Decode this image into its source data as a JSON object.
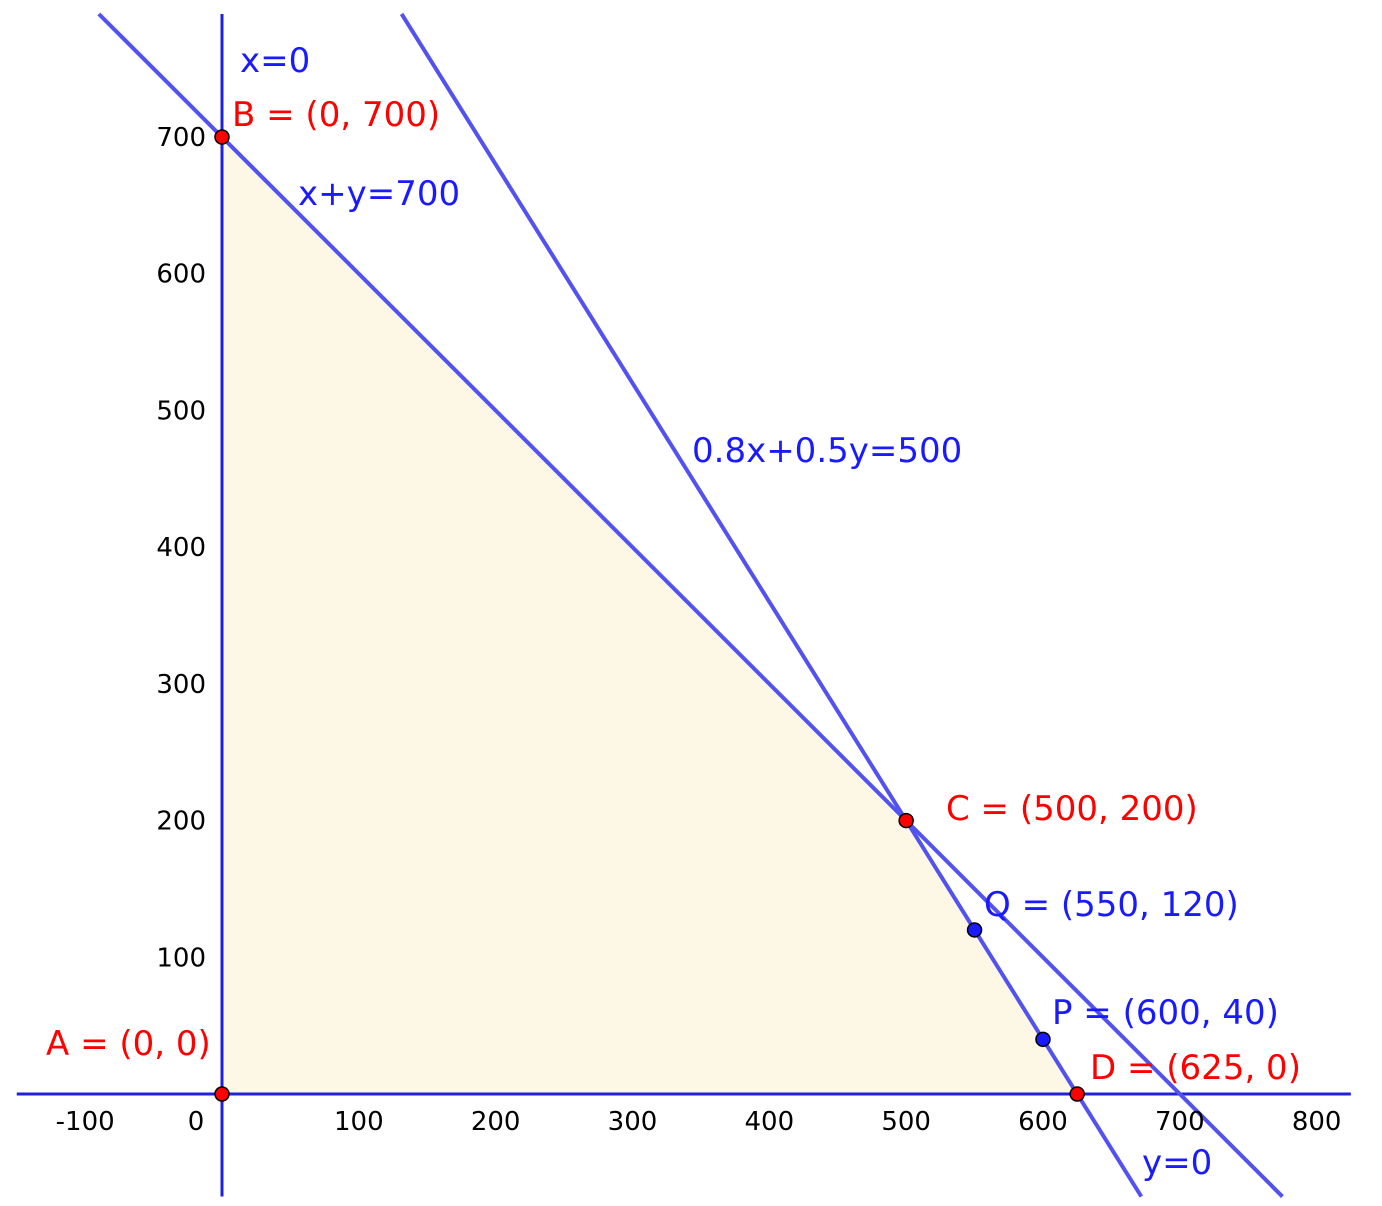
{
  "chart_data": {
    "type": "line",
    "xlim": [
      -150,
      825
    ],
    "ylim": [
      -75,
      790
    ],
    "x_ticks": [
      "-100",
      "0",
      "100",
      "200",
      "300",
      "400",
      "500",
      "600",
      "700",
      "800"
    ],
    "x_tick_values": [
      -100,
      0,
      100,
      200,
      300,
      400,
      500,
      600,
      700,
      800
    ],
    "y_ticks": [
      "100",
      "200",
      "300",
      "400",
      "500",
      "600",
      "700"
    ],
    "y_tick_values": [
      100,
      200,
      300,
      400,
      500,
      600,
      700
    ],
    "grid": false,
    "feasible_region": [
      [
        0,
        0
      ],
      [
        0,
        700
      ],
      [
        500,
        200
      ],
      [
        625,
        0
      ]
    ],
    "feasible_region_color": "#fdf7e6",
    "line_color": "#5252f0",
    "axis_color": "#2020e0",
    "lines": [
      {
        "label": "x+y=700",
        "a": 1,
        "b": 1,
        "c": 700
      },
      {
        "label": "0.8x+0.5y=500",
        "a": 0.8,
        "b": 0.5,
        "c": 500
      },
      {
        "label": "x=0",
        "a": 1,
        "b": 0,
        "c": 0
      },
      {
        "label": "y=0",
        "a": 0,
        "b": 1,
        "c": 0
      }
    ],
    "points": [
      {
        "label": "A = (0, 0)",
        "x": 0,
        "y": 0,
        "color": "#ff0000"
      },
      {
        "label": "B = (0, 700)",
        "x": 0,
        "y": 700,
        "color": "#ff0000"
      },
      {
        "label": "C = (500, 200)",
        "x": 500,
        "y": 200,
        "color": "#ff0000"
      },
      {
        "label": "D = (625, 0)",
        "x": 625,
        "y": 0,
        "color": "#ff0000"
      },
      {
        "label": "Q = (550, 120)",
        "x": 550,
        "y": 120,
        "color": "#1a1aff"
      },
      {
        "label": "P = (600, 40)",
        "x": 600,
        "y": 40,
        "color": "#1a1aff"
      }
    ]
  }
}
